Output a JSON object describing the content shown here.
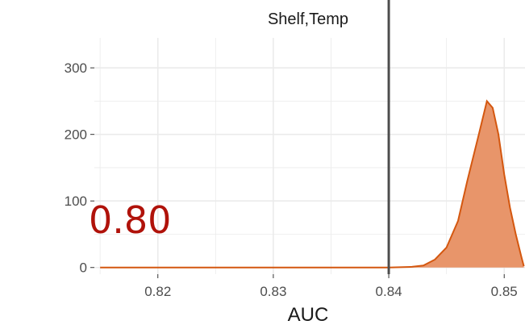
{
  "chart_data": {
    "type": "area",
    "facet_title": "Shelf,Temp",
    "xlabel": "AUC",
    "ylabel": "",
    "xlim": [
      0.8145,
      0.8518
    ],
    "ylim": [
      -10,
      345
    ],
    "x_ticks": [
      0.82,
      0.83,
      0.84,
      0.85
    ],
    "x_tick_labels": [
      "0.82",
      "0.83",
      "0.84",
      "0.85"
    ],
    "y_ticks": [
      0,
      100,
      200,
      300
    ],
    "y_tick_labels": [
      "0",
      "100",
      "200",
      "300"
    ],
    "vline_x": 0.84,
    "grid": true,
    "series": [
      {
        "x": [
          0.815,
          0.82,
          0.83,
          0.838,
          0.84,
          0.842,
          0.843,
          0.844,
          0.845,
          0.846,
          0.8468,
          0.8478,
          0.8485,
          0.849,
          0.8495,
          0.85,
          0.8505,
          0.851,
          0.8515,
          0.8517
        ],
        "y": [
          0,
          0,
          0,
          0,
          0,
          1,
          3,
          12,
          30,
          70,
          130,
          200,
          250,
          240,
          200,
          140,
          90,
          50,
          15,
          2
        ]
      }
    ],
    "colors": {
      "fill": "#e8956a",
      "line": "#d4570f",
      "vline": "#4d4d4d",
      "panel": "#ffffff",
      "grid": "#ebebeb",
      "axis_text": "#4d4d4d"
    }
  },
  "overlay_label": "0.80"
}
